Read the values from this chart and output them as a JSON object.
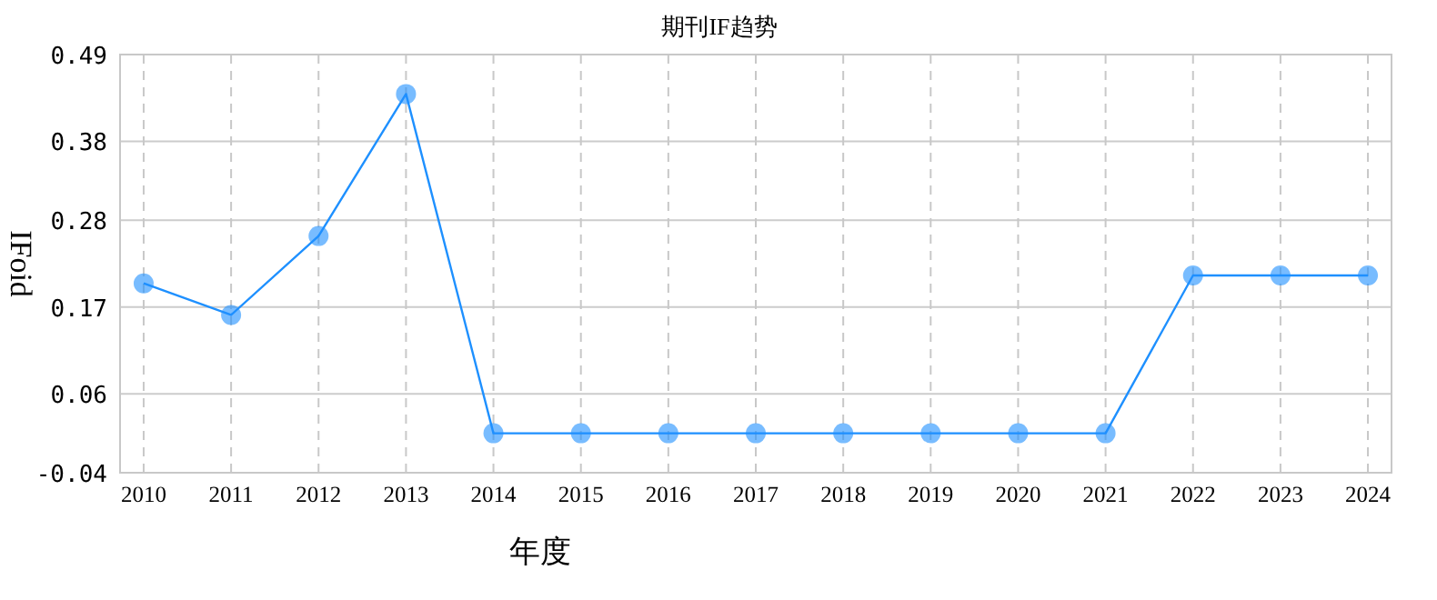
{
  "chart_data": {
    "type": "line",
    "title": "期刊IF趋势",
    "xlabel": "年度",
    "ylabel": "IFoid",
    "categories": [
      "2010",
      "2011",
      "2012",
      "2013",
      "2014",
      "2015",
      "2016",
      "2017",
      "2018",
      "2019",
      "2020",
      "2021",
      "2022",
      "2023",
      "2024"
    ],
    "series": [
      {
        "color": "#1e90ff",
        "values": [
          0.2,
          0.16,
          0.26,
          0.44,
          0.01,
          0.01,
          0.01,
          0.01,
          0.01,
          0.01,
          0.01,
          0.01,
          0.21,
          0.21,
          0.21
        ]
      }
    ],
    "ylim": [
      -0.04,
      0.49
    ],
    "yticks": [
      -0.04,
      0.06,
      0.17,
      0.28,
      0.38,
      0.49
    ],
    "grid": true,
    "marker": "circle",
    "line_style": "solid"
  }
}
